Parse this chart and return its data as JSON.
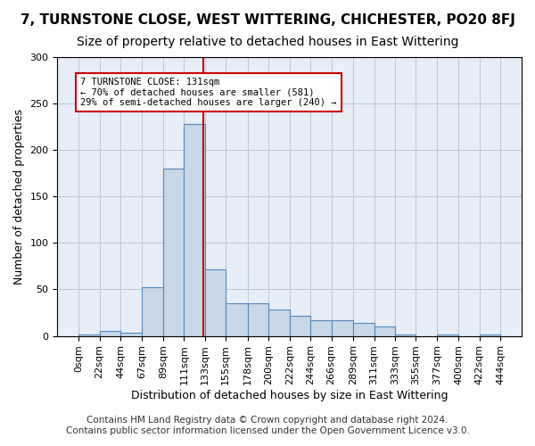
{
  "title1": "7, TURNSTONE CLOSE, WEST WITTERING, CHICHESTER, PO20 8FJ",
  "title2": "Size of property relative to detached houses in East Wittering",
  "xlabel": "Distribution of detached houses by size in East Wittering",
  "ylabel": "Number of detached properties",
  "footnote1": "Contains HM Land Registry data © Crown copyright and database right 2024.",
  "footnote2": "Contains public sector information licensed under the Open Government Licence v3.0.",
  "annotation_line1": "7 TURNSTONE CLOSE: 131sqm",
  "annotation_line2": "← 70% of detached houses are smaller (581)",
  "annotation_line3": "29% of semi-detached houses are larger (240) →",
  "property_size": 131,
  "bar_edges": [
    0,
    22,
    44,
    67,
    89,
    111,
    133,
    155,
    178,
    200,
    222,
    244,
    266,
    289,
    311,
    333,
    355,
    377,
    400,
    422,
    444
  ],
  "bar_heights": [
    2,
    5,
    3,
    52,
    180,
    228,
    72,
    35,
    35,
    28,
    22,
    17,
    17,
    14,
    10,
    2,
    0,
    2,
    0,
    2
  ],
  "bar_color": "#c8d8e8",
  "bar_edge_color": "#5588bb",
  "grid_color": "#c0c8d8",
  "bg_color": "#e8eef8",
  "vline_color": "#cc0000",
  "box_edge_color": "#cc0000",
  "ylim": [
    0,
    300
  ],
  "yticks": [
    0,
    50,
    100,
    150,
    200,
    250,
    300
  ],
  "title1_fontsize": 11,
  "title2_fontsize": 10,
  "xlabel_fontsize": 9,
  "ylabel_fontsize": 9,
  "tick_fontsize": 8,
  "footnote_fontsize": 7.5
}
